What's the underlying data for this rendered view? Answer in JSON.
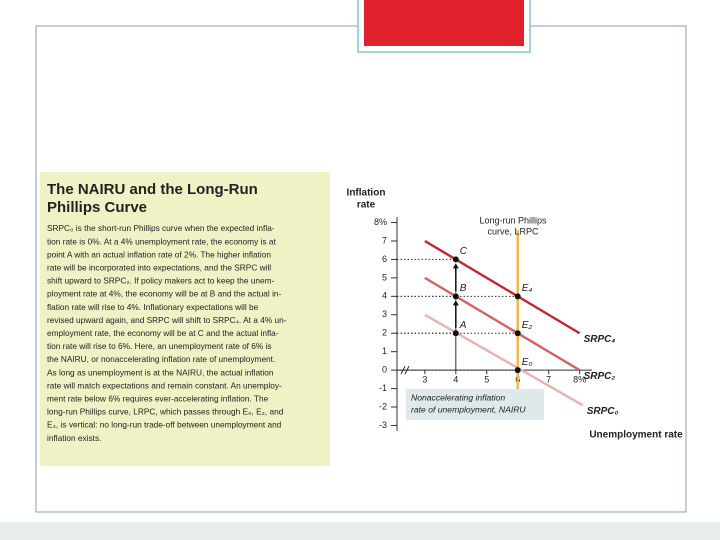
{
  "panel": {
    "title_lines": [
      "The NAIRU and the Long-Run",
      "Phillips Curve"
    ],
    "body_lines": [
      "SRPC₀ is the short-run Phillips curve when the expected infla-",
      "tion rate is 0%. At a 4% unemployment rate, the economy is at",
      "point A with an actual inflation rate of 2%. The higher inflation",
      "rate will be incorporated into expectations, and the SRPC will",
      "shift upward to SRPC₂. If policy makers act to keep the unem-",
      "ployment rate at 4%, the economy will be at B and the actual in-",
      "flation rate will rise to 4%. Inflationary expectations will be",
      "revised upward again, and SRPC will shift to SRPC₄. At a 4% un-",
      "employment rate, the economy will be at C and the actual infla-",
      "tion rate will rise to 6%. Here, an unemployment rate of 6% is",
      "the NAIRU, or nonaccelerating inflation rate of unemployment.",
      "As long as unemployment is at the NAIRU, the actual inflation",
      "rate will match expectations and remain constant. An unemploy-",
      "ment rate below 6% requires ever-accelerating inflation. The",
      "long-run Phillips curve, LRPC, which passes through E₀, E₂, and",
      "E₄, is vertical: no long-run trade-off between unemployment and",
      "inflation exists."
    ]
  },
  "chart_data": {
    "type": "line",
    "y_label_lines": [
      "Inflation",
      "rate"
    ],
    "x_label": "Unemployment rate",
    "xlim": [
      2.1,
      8.4
    ],
    "ylim": [
      -3.3,
      8.3
    ],
    "xticks": [
      3,
      4,
      5,
      6,
      7,
      {
        "value": 8,
        "label": "8%"
      }
    ],
    "yticks": [
      -3,
      -2,
      -1,
      0,
      1,
      2,
      3,
      4,
      5,
      6,
      7,
      {
        "value": 8,
        "label": "8%"
      }
    ],
    "series": [
      {
        "name": "SRPC₄",
        "color": "#c4262e",
        "x": [
          3,
          8
        ],
        "values": [
          7,
          2
        ]
      },
      {
        "name": "SRPC₂",
        "color": "#d4615f",
        "x": [
          3,
          8
        ],
        "values": [
          5,
          0
        ]
      },
      {
        "name": "SRPC₀",
        "color": "#ebb1ae",
        "x": [
          3,
          8.1
        ],
        "values": [
          3,
          -1.9
        ]
      },
      {
        "color": "#f0b73e",
        "x": [
          6,
          6
        ],
        "values": [
          -2.2,
          7.6
        ]
      }
    ],
    "points": [
      {
        "label": "A",
        "x": 4,
        "y": 2
      },
      {
        "label": "B",
        "x": 4,
        "y": 4
      },
      {
        "label": "C",
        "x": 4,
        "y": 6
      },
      {
        "label": "E₀",
        "x": 6,
        "y": 0
      },
      {
        "label": "E₂",
        "x": 6,
        "y": 2
      },
      {
        "label": "E₄",
        "x": 6,
        "y": 4
      }
    ],
    "lrpc_label_lines": [
      "Long-run Phillips",
      "curve, LRPC"
    ],
    "nairu_label_lines": [
      "Nonaccelerating inflation",
      "rate of unemployment, NAIRU"
    ]
  }
}
